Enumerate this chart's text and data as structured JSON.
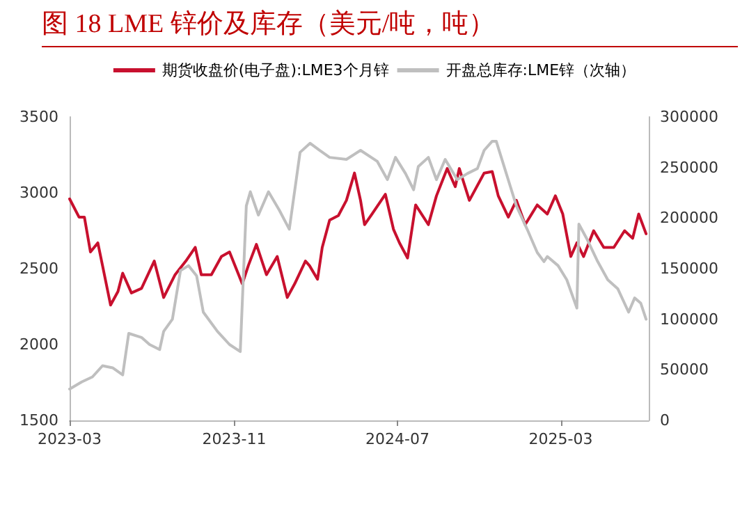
{
  "chart_data": {
    "type": "line",
    "title": "图 18  LME 锌价及库存（美元/吨，吨）",
    "xlim": [
      "2023-03-01",
      "2025-07-10"
    ],
    "xticks": [
      "2023-03",
      "2023-11",
      "2024-07",
      "2025-03"
    ],
    "ylim": [
      1500,
      3500
    ],
    "yticks": [
      1500,
      2000,
      2500,
      3000,
      3500
    ],
    "y2lim": [
      0,
      300000
    ],
    "y2ticks": [
      0,
      50000,
      100000,
      150000,
      200000,
      250000,
      300000
    ],
    "grid": false,
    "legend": "top",
    "marker": "none",
    "line_style": "solid",
    "series": [
      {
        "name": "期货收盘价(电子盘):LME3个月锌",
        "color": "#c8102e",
        "x": [
          "2023-03-01",
          "2023-03-15",
          "2023-03-23",
          "2023-04-01",
          "2023-04-12",
          "2023-04-19",
          "2023-05-01",
          "2023-05-12",
          "2023-05-19",
          "2023-06-01",
          "2023-06-16",
          "2023-07-05",
          "2023-07-19",
          "2023-08-05",
          "2023-08-21",
          "2023-09-04",
          "2023-09-13",
          "2023-09-28",
          "2023-10-13",
          "2023-10-25",
          "2023-11-13",
          "2023-11-22",
          "2023-12-04",
          "2023-12-19",
          "2024-01-04",
          "2024-01-19",
          "2024-01-30",
          "2024-02-15",
          "2024-02-21",
          "2024-03-04",
          "2024-03-11",
          "2024-03-22",
          "2024-04-04",
          "2024-04-16",
          "2024-04-28",
          "2024-05-07",
          "2024-05-13",
          "2024-05-24",
          "2024-06-13",
          "2024-06-25",
          "2024-07-04",
          "2024-07-16",
          "2024-07-28",
          "2024-08-16",
          "2024-08-28",
          "2024-09-13",
          "2024-09-25",
          "2024-10-01",
          "2024-10-16",
          "2024-11-07",
          "2024-11-19",
          "2024-11-28",
          "2024-12-13",
          "2024-12-25",
          "2025-01-07",
          "2025-01-25",
          "2025-02-09",
          "2025-02-21",
          "2025-03-04",
          "2025-03-16",
          "2025-03-25",
          "2025-04-04",
          "2025-04-19",
          "2025-05-04",
          "2025-05-19",
          "2025-06-04",
          "2025-06-16",
          "2025-06-25",
          "2025-07-06"
        ],
        "values": [
          2960,
          2840,
          2840,
          2610,
          2670,
          2520,
          2260,
          2350,
          2470,
          2340,
          2370,
          2550,
          2310,
          2460,
          2550,
          2640,
          2460,
          2460,
          2580,
          2610,
          2400,
          2520,
          2660,
          2460,
          2580,
          2310,
          2400,
          2550,
          2520,
          2430,
          2640,
          2820,
          2850,
          2950,
          3130,
          2950,
          2790,
          2860,
          2990,
          2760,
          2670,
          2570,
          2920,
          2790,
          2980,
          3160,
          3040,
          3160,
          2950,
          3130,
          3140,
          2980,
          2840,
          2950,
          2790,
          2920,
          2860,
          2980,
          2860,
          2580,
          2670,
          2580,
          2750,
          2640,
          2640,
          2750,
          2700,
          2860,
          2730
        ]
      },
      {
        "name": "开盘总库存:LME锌（次轴）",
        "color": "#bfbfbf",
        "axis": "y2",
        "x": [
          "2023-03-01",
          "2023-03-19",
          "2023-04-04",
          "2023-04-19",
          "2023-05-04",
          "2023-05-19",
          "2023-05-28",
          "2023-06-16",
          "2023-06-28",
          "2023-07-13",
          "2023-07-19",
          "2023-08-01",
          "2023-08-13",
          "2023-08-25",
          "2023-09-06",
          "2023-09-16",
          "2023-10-07",
          "2023-10-25",
          "2023-11-10",
          "2023-11-19",
          "2023-11-25",
          "2023-12-07",
          "2023-12-22",
          "2024-01-07",
          "2024-01-22",
          "2024-02-07",
          "2024-02-22",
          "2024-03-07",
          "2024-03-22",
          "2024-04-16",
          "2024-05-07",
          "2024-06-01",
          "2024-06-16",
          "2024-06-28",
          "2024-07-13",
          "2024-07-25",
          "2024-08-01",
          "2024-08-16",
          "2024-08-28",
          "2024-09-10",
          "2024-09-28",
          "2024-10-13",
          "2024-10-28",
          "2024-11-07",
          "2024-11-19",
          "2024-11-25",
          "2024-12-10",
          "2024-12-25",
          "2025-01-10",
          "2025-01-25",
          "2025-02-04",
          "2025-02-09",
          "2025-02-25",
          "2025-03-10",
          "2025-03-25",
          "2025-03-28",
          "2025-04-10",
          "2025-04-25",
          "2025-05-10",
          "2025-05-25",
          "2025-06-10",
          "2025-06-19",
          "2025-06-28",
          "2025-07-06"
        ],
        "values": [
          31000,
          38000,
          43000,
          54000,
          52000,
          45000,
          86000,
          82000,
          75000,
          70000,
          88000,
          100000,
          148000,
          153000,
          143000,
          107000,
          88000,
          75000,
          68000,
          212000,
          226000,
          203000,
          226000,
          208000,
          189000,
          265000,
          274000,
          267000,
          260000,
          258000,
          267000,
          256000,
          238000,
          260000,
          244000,
          228000,
          251000,
          260000,
          238000,
          258000,
          238000,
          244000,
          249000,
          267000,
          276000,
          276000,
          244000,
          212000,
          189000,
          166000,
          157000,
          162000,
          153000,
          139000,
          111000,
          194000,
          178000,
          157000,
          139000,
          130000,
          107000,
          121000,
          116000,
          100000
        ]
      }
    ]
  }
}
